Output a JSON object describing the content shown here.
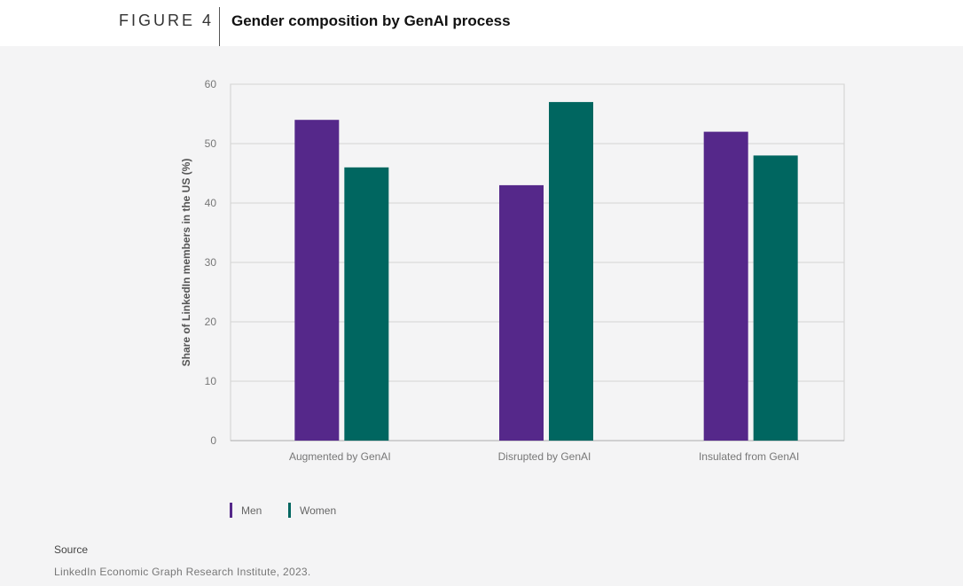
{
  "figure": {
    "label": "FIGURE 4",
    "title": "Gender composition by GenAI process"
  },
  "colors": {
    "men": "#55288a",
    "women": "#006660"
  },
  "legend": {
    "men": "Men",
    "women": "Women"
  },
  "source": {
    "label": "Source",
    "text": "LinkedIn Economic Graph Research Institute, 2023."
  },
  "chart_data": {
    "type": "bar",
    "title": "Gender composition by GenAI process",
    "xlabel": "",
    "ylabel": "Share of LinkedIn members in the US (%)",
    "ylim": [
      0,
      60
    ],
    "yticks": [
      0,
      10,
      20,
      30,
      40,
      50,
      60
    ],
    "grid": true,
    "legend_position": "bottom-left",
    "categories": [
      "Augmented by GenAI",
      "Disrupted by GenAI",
      "Insulated from GenAI"
    ],
    "series": [
      {
        "name": "Men",
        "values": [
          54,
          43,
          52
        ]
      },
      {
        "name": "Women",
        "values": [
          46,
          57,
          48
        ]
      }
    ]
  }
}
